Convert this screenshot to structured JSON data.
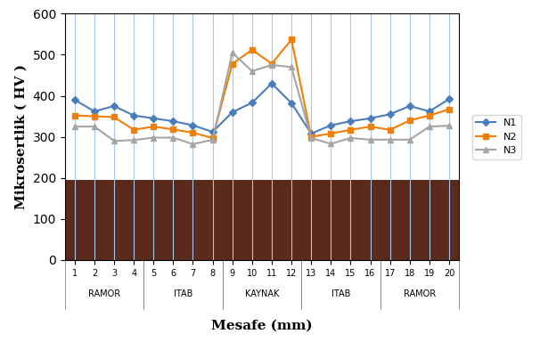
{
  "chart_data": {
    "type": "line",
    "x_label": "Mesafe (mm)",
    "y_label": "Mikrosertlik ( HV )",
    "categories": [
      "1",
      "2",
      "3",
      "4",
      "5",
      "6",
      "7",
      "8",
      "9",
      "10",
      "11",
      "12",
      "13",
      "14",
      "15",
      "16",
      "17",
      "18",
      "19",
      "20"
    ],
    "category_groups": [
      {
        "label": "RAMOR",
        "categories": [
          "1",
          "2",
          "3",
          "4"
        ]
      },
      {
        "label": "ITAB",
        "categories": [
          "5",
          "6",
          "7",
          "8"
        ]
      },
      {
        "label": "KAYNAK",
        "categories": [
          "9",
          "10",
          "11",
          "12"
        ]
      },
      {
        "label": "ITAB",
        "categories": [
          "13",
          "14",
          "15",
          "16"
        ]
      },
      {
        "label": "RAMOR",
        "categories": [
          "17",
          "18",
          "19",
          "20"
        ]
      }
    ],
    "series": [
      {
        "name": "N1",
        "color": "#4a7ebb",
        "marker": "diamond",
        "values": [
          390,
          362,
          375,
          352,
          345,
          338,
          328,
          312,
          360,
          383,
          430,
          382,
          308,
          328,
          338,
          345,
          355,
          375,
          362,
          392
        ]
      },
      {
        "name": "N2",
        "color": "#f07f09",
        "marker": "square",
        "values": [
          352,
          350,
          348,
          317,
          325,
          318,
          310,
          297,
          478,
          512,
          478,
          537,
          300,
          308,
          317,
          325,
          317,
          340,
          352,
          367
        ]
      },
      {
        "name": "N3",
        "color": "#a5a5a5",
        "marker": "triangle",
        "values": [
          325,
          325,
          290,
          292,
          298,
          298,
          282,
          293,
          505,
          460,
          475,
          470,
          297,
          283,
          297,
          293,
          293,
          293,
          325,
          327
        ]
      }
    ],
    "ylim": [
      0,
      600
    ],
    "yticks": [
      0,
      100,
      200,
      300,
      400,
      500,
      600
    ],
    "grid": true,
    "legend": "right"
  }
}
